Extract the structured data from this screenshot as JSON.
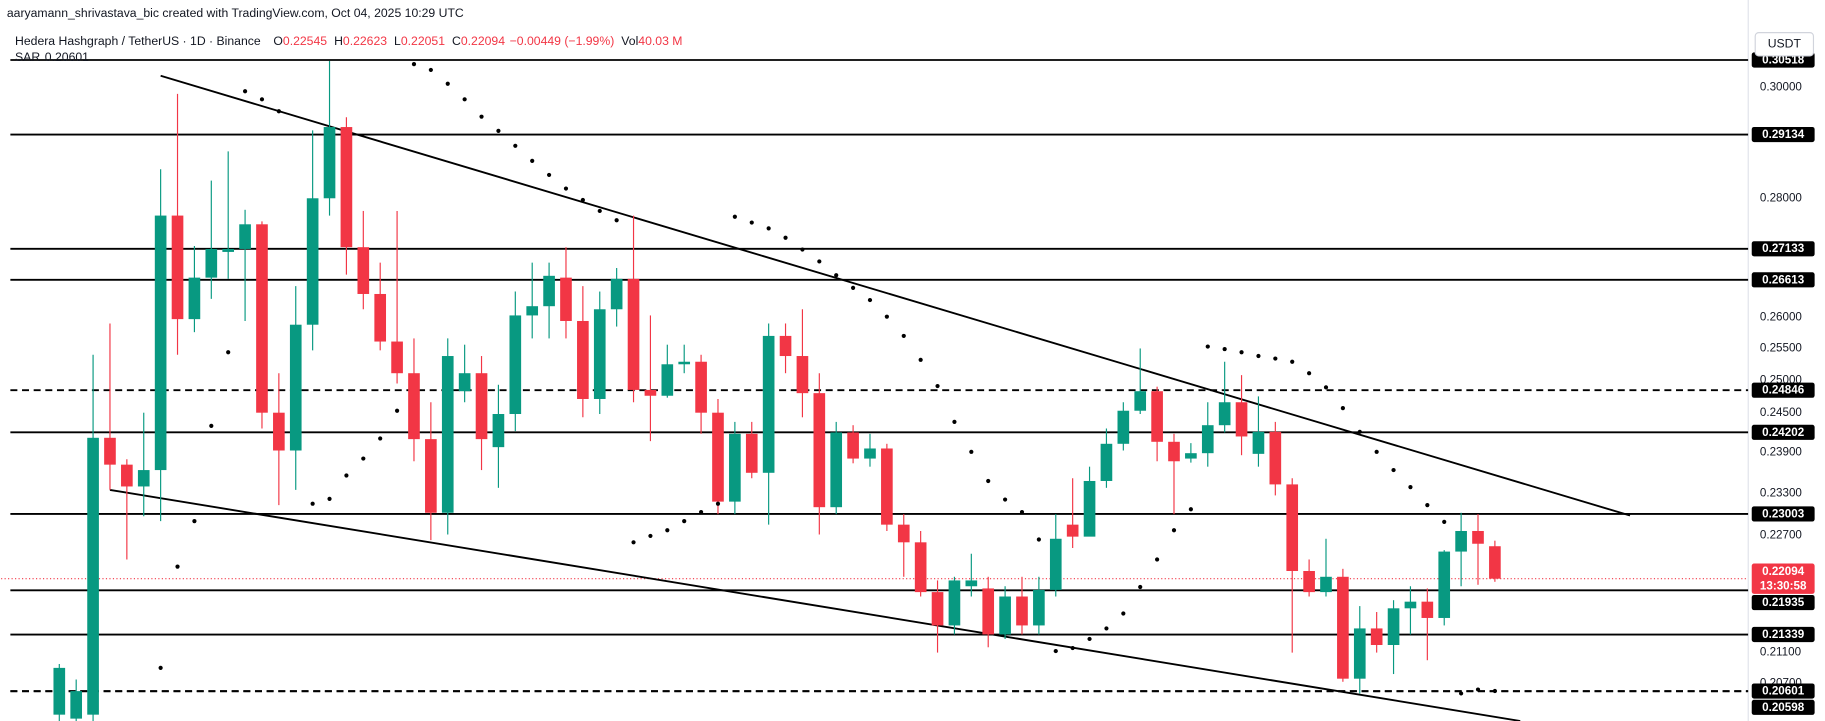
{
  "header": {
    "credit": "aaryamann_shrivastava_bic created with TradingView.com, Oct 04, 2025 10:29 UTC"
  },
  "chart_data": {
    "type": "candlestick",
    "title": "Hedera Hashgraph / TetherUS · 1D · Binance",
    "legend": [
      {
        "label": "O",
        "value": 0.22545
      },
      {
        "label": "H",
        "value": 0.22623
      },
      {
        "label": "L",
        "value": 0.22051
      },
      {
        "label": "C",
        "value": 0.22094
      }
    ],
    "change": "−0.00449 (−1.99%)",
    "volume": {
      "label": "Vol",
      "value": "40.03 M"
    },
    "currency": "USDT",
    "log_scale": true,
    "grid": false,
    "up_color": "#089981",
    "down_color": "#f23645",
    "ylim": [
      0.2022,
      0.3168
    ],
    "yticks": [
      {
        "value": 0.3,
        "label": "0.30000"
      },
      {
        "value": 0.28,
        "label": "0.28000"
      },
      {
        "value": 0.26,
        "label": "0.26000"
      },
      {
        "value": 0.255,
        "label": "0.25500"
      },
      {
        "value": 0.25,
        "label": "0.25000"
      },
      {
        "value": 0.245,
        "label": "0.24500"
      },
      {
        "value": 0.239,
        "label": "0.23900"
      },
      {
        "value": 0.233,
        "label": "0.23300"
      },
      {
        "value": 0.227,
        "label": "0.22700"
      },
      {
        "value": 0.211,
        "label": "0.21100"
      },
      {
        "value": 0.207,
        "label": "0.20700"
      }
    ],
    "open": [
      0.203,
      0.2025,
      0.203,
      0.2412,
      0.2372,
      0.234,
      0.2364,
      0.277,
      0.2597,
      0.2665,
      0.2708,
      0.2713,
      0.2755,
      0.245,
      0.2393,
      0.2588,
      0.28,
      0.2927,
      0.2716,
      0.2638,
      0.2561,
      0.2511,
      0.241,
      0.2302,
      0.2483,
      0.2511,
      0.2398,
      0.2448,
      0.2603,
      0.2618,
      0.2665,
      0.2594,
      0.2471,
      0.2613,
      0.2663,
      0.2485,
      0.2476,
      0.2525,
      0.2529,
      0.245,
      0.2318,
      0.2418,
      0.236,
      0.257,
      0.2538,
      0.248,
      0.231,
      0.242,
      0.2381,
      0.2396,
      0.2285,
      0.226,
      0.2191,
      0.2146,
      0.2199,
      0.2196,
      0.2134,
      0.2185,
      0.2146,
      0.2194,
      0.2285,
      0.2268,
      0.2348,
      0.2403,
      0.2453,
      0.2483,
      0.2406,
      0.2381,
      0.2389,
      0.2431,
      0.2466,
      0.2388,
      0.2421,
      0.2343,
      0.222,
      0.2191,
      0.2212,
      0.2076,
      0.2142,
      0.212,
      0.2169,
      0.2178,
      0.2156,
      0.2247,
      0.2276,
      0.22545
    ],
    "high": [
      0.2095,
      0.2075,
      0.254,
      0.259,
      0.238,
      0.245,
      0.2851,
      0.2988,
      0.2718,
      0.2831,
      0.2883,
      0.278,
      0.276,
      0.2511,
      0.2651,
      0.2921,
      0.305,
      0.2945,
      0.2778,
      0.269,
      0.2778,
      0.2566,
      0.2466,
      0.2566,
      0.2556,
      0.2538,
      0.2493,
      0.2642,
      0.269,
      0.269,
      0.2716,
      0.2651,
      0.2642,
      0.2681,
      0.277,
      0.2603,
      0.2556,
      0.2556,
      0.254,
      0.2471,
      0.2436,
      0.2436,
      0.259,
      0.259,
      0.2613,
      0.2511,
      0.2436,
      0.2431,
      0.2418,
      0.2403,
      0.23,
      0.2276,
      0.2207,
      0.2212,
      0.2244,
      0.2212,
      0.2199,
      0.2212,
      0.2212,
      0.23,
      0.2352,
      0.2369,
      0.2426,
      0.2466,
      0.255,
      0.249,
      0.2418,
      0.2404,
      0.2466,
      0.2529,
      0.2508,
      0.2475,
      0.2436,
      0.2352,
      0.2236,
      0.2265,
      0.2223,
      0.2172,
      0.2164,
      0.218,
      0.2199,
      0.2196,
      0.2249,
      0.2302,
      0.23,
      0.22623
    ],
    "low": [
      0.2022,
      0.2022,
      0.2022,
      0.2335,
      0.2236,
      0.2297,
      0.229,
      0.254,
      0.2576,
      0.263,
      0.2663,
      0.2594,
      0.2426,
      0.2313,
      0.2335,
      0.2547,
      0.277,
      0.267,
      0.2613,
      0.2547,
      0.2495,
      0.2377,
      0.2263,
      0.2271,
      0.2466,
      0.2364,
      0.2338,
      0.2422,
      0.2566,
      0.2566,
      0.2566,
      0.2443,
      0.2448,
      0.2585,
      0.2466,
      0.2407,
      0.2473,
      0.2511,
      0.2418,
      0.23,
      0.23,
      0.2352,
      0.2285,
      0.2511,
      0.2443,
      0.2271,
      0.23,
      0.2374,
      0.2369,
      0.2276,
      0.2212,
      0.2185,
      0.211,
      0.2134,
      0.2185,
      0.2117,
      0.2128,
      0.2134,
      0.2134,
      0.2185,
      0.2252,
      0.2276,
      0.2338,
      0.2393,
      0.2448,
      0.2377,
      0.23,
      0.2375,
      0.2369,
      0.242,
      0.2386,
      0.2369,
      0.2327,
      0.211,
      0.2185,
      0.2185,
      0.2072,
      0.2057,
      0.211,
      0.2082,
      0.2134,
      0.21,
      0.2146,
      0.2199,
      0.2201,
      0.22051
    ],
    "close": [
      0.209,
      0.206,
      0.2412,
      0.2372,
      0.234,
      0.2364,
      0.277,
      0.2597,
      0.2665,
      0.2713,
      0.2713,
      0.2755,
      0.245,
      0.2393,
      0.2588,
      0.28,
      0.2927,
      0.2716,
      0.2638,
      0.2561,
      0.2511,
      0.241,
      0.2302,
      0.2538,
      0.2511,
      0.241,
      0.2448,
      0.2603,
      0.2618,
      0.2668,
      0.2594,
      0.2471,
      0.2613,
      0.2663,
      0.2485,
      0.2476,
      0.2525,
      0.2529,
      0.245,
      0.2318,
      0.2418,
      0.236,
      0.257,
      0.2538,
      0.248,
      0.231,
      0.242,
      0.2381,
      0.2396,
      0.2285,
      0.226,
      0.2191,
      0.2146,
      0.2207,
      0.2207,
      0.2134,
      0.2185,
      0.2146,
      0.2194,
      0.2265,
      0.2268,
      0.2348,
      0.2403,
      0.2453,
      0.2483,
      0.2406,
      0.2377,
      0.2389,
      0.2431,
      0.2466,
      0.2414,
      0.2421,
      0.2343,
      0.222,
      0.2191,
      0.2212,
      0.2076,
      0.2142,
      0.212,
      0.2169,
      0.2178,
      0.2156,
      0.2247,
      0.2276,
      0.2258,
      0.22094
    ],
    "sar": {
      "name": "SAR",
      "value": 0.20601,
      "color": "#000000",
      "values": [
        null,
        null,
        null,
        null,
        null,
        null,
        0.209,
        0.2226,
        0.229,
        0.243,
        0.2544,
        0.2993,
        0.2978,
        0.2956,
        null,
        0.2315,
        0.2322,
        0.2356,
        0.2381,
        0.2411,
        0.2453,
        0.3044,
        0.3033,
        0.3007,
        0.2978,
        0.2946,
        0.292,
        0.2893,
        0.2866,
        0.2841,
        0.2817,
        0.2797,
        0.2778,
        0.2762,
        0.226,
        0.2269,
        0.2277,
        0.229,
        0.2303,
        0.2315,
        0.2768,
        0.2758,
        0.2748,
        0.2732,
        0.2712,
        0.2692,
        0.2669,
        0.2648,
        0.2628,
        0.2601,
        0.257,
        0.2532,
        0.2491,
        0.2436,
        0.2391,
        0.2348,
        0.2321,
        0.2303,
        0.2264,
        0.2112,
        0.2116,
        0.2128,
        0.2142,
        0.2162,
        0.2198,
        0.2236,
        0.2277,
        0.2307,
        0.2553,
        0.2549,
        0.2544,
        0.2538,
        0.2534,
        0.2529,
        0.2511,
        0.2489,
        0.2457,
        0.2421,
        0.2391,
        0.2364,
        0.2339,
        0.2313,
        0.2289,
        0.2057,
        0.2062,
        0.20601
      ]
    },
    "levels": [
      {
        "value": 0.30518,
        "style": "solid"
      },
      {
        "value": 0.29134,
        "style": "solid"
      },
      {
        "value": 0.27133,
        "style": "solid"
      },
      {
        "value": 0.26613,
        "style": "solid"
      },
      {
        "value": 0.24846,
        "style": "dashed"
      },
      {
        "value": 0.24202,
        "style": "solid"
      },
      {
        "value": 0.23003,
        "style": "solid"
      },
      {
        "value": 0.21935,
        "style": "solid"
      },
      {
        "value": 0.21339,
        "style": "solid"
      },
      {
        "value": 0.20601,
        "style": "dashed"
      },
      {
        "value": 0.20598,
        "style": "dashed"
      }
    ],
    "last_price": {
      "value": 0.22094,
      "countdown": "13:30:58"
    },
    "trendlines": [
      {
        "points": [
          [
            6,
            0.3022
          ],
          [
            93,
            0.2298
          ]
        ]
      },
      {
        "points": [
          [
            3,
            0.2335
          ],
          [
            86.5,
            0.2022
          ]
        ]
      }
    ]
  }
}
